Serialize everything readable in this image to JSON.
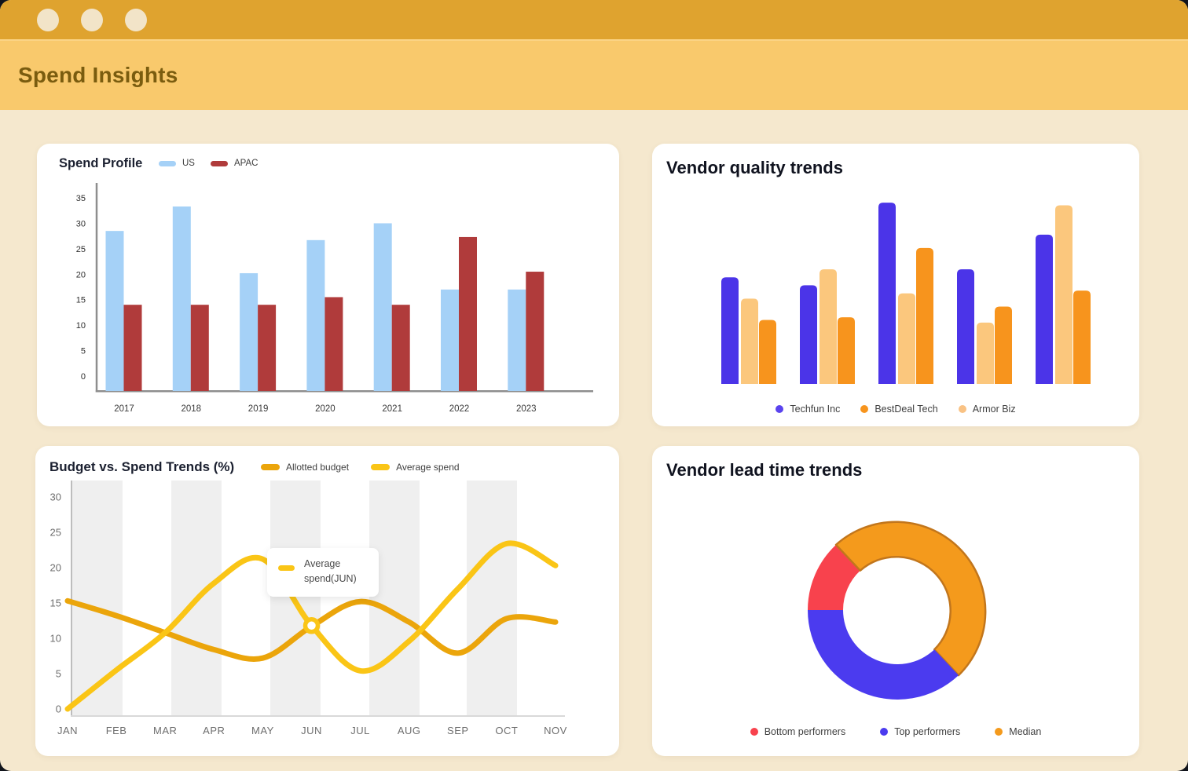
{
  "window": {
    "title": "Spend Insights"
  },
  "colors": {
    "titlebar": "#DFA32F",
    "header_band": "#F9C96C",
    "header_title": "#7A5C0F",
    "background": "#F5E8CE",
    "card": "#FFFFFF"
  },
  "chart_data": [
    {
      "type": "bar",
      "title": "Spend Profile",
      "categories": [
        "2017",
        "2018",
        "2019",
        "2020",
        "2021",
        "2022",
        "2023"
      ],
      "series": [
        {
          "name": "US",
          "color": "#A5D1F7",
          "values": [
            28.5,
            33.3,
            20.2,
            26.7,
            30,
            17,
            17
          ]
        },
        {
          "name": "APAC",
          "color": "#B03B3B",
          "values": [
            14,
            14,
            14,
            15.5,
            14,
            27.3,
            20.5
          ]
        }
      ],
      "xlabel": "",
      "ylabel": "",
      "ylim": [
        0,
        35
      ],
      "y_ticks": [
        0,
        5,
        10,
        15,
        20,
        25,
        30,
        35
      ],
      "grid": false,
      "legend_position": "top",
      "legend_items": [
        {
          "label": "US",
          "color": "#A5D1F7"
        },
        {
          "label": "APAC",
          "color": "#B03B3B"
        }
      ]
    },
    {
      "type": "bar",
      "title": "Vendor quality trends",
      "categories": [
        "",
        "",
        "",
        "",
        ""
      ],
      "series": [
        {
          "name": "Techfun Inc",
          "color": "#4B34E8",
          "values": [
            20,
            18.5,
            34,
            21.5,
            28
          ]
        },
        {
          "name": "Armor Biz",
          "color": "#FBC77D",
          "values": [
            16,
            21.5,
            17,
            11.5,
            33.5
          ]
        },
        {
          "name": "BestDeal Tech",
          "color": "#F7941D",
          "values": [
            12,
            12.5,
            25.5,
            14.5,
            17.5
          ]
        }
      ],
      "ylim": [
        0,
        36
      ],
      "axes_visible": false,
      "grid": false,
      "legend_position": "bottom",
      "legend_items": [
        {
          "label": "Techfun Inc",
          "color": "#5A43EE"
        },
        {
          "label": "BestDeal Tech",
          "color": "#F7941D"
        },
        {
          "label": "Armor Biz",
          "color": "#F9C284"
        }
      ]
    },
    {
      "type": "line",
      "title": "Budget vs. Spend Trends (%)",
      "x": [
        "JAN",
        "FEB",
        "MAR",
        "APR",
        "MAY",
        "JUN",
        "JUL",
        "AUG",
        "SEP",
        "OCT",
        "NOV"
      ],
      "series": [
        {
          "name": "Allotted budget",
          "color": "#EBA50B",
          "values": [
            15.3,
            13.2,
            10.8,
            8.4,
            7.2,
            11.7,
            15.2,
            12.3,
            7.9,
            12.8,
            12.3
          ]
        },
        {
          "name": "Average spend",
          "color": "#FAC516",
          "values": [
            0,
            5.5,
            10.8,
            17.8,
            21.2,
            11.8,
            5.4,
            9.6,
            17,
            23.4,
            20.3
          ]
        }
      ],
      "ylim": [
        0,
        31
      ],
      "y_ticks": [
        0,
        5,
        10,
        15,
        20,
        25,
        30
      ],
      "plot_bands": "alternating vertical gray stripes",
      "band_color": "#EFEFEF",
      "legend_position": "top",
      "legend_items": [
        {
          "label": "Allotted budget",
          "color": "#EBA50B"
        },
        {
          "label": "Average spend",
          "color": "#FAC516"
        }
      ],
      "highlight": {
        "series": "Average spend",
        "x": "JUN",
        "value": 11.8,
        "tooltip_lines": [
          "Average",
          "spend(JUN)"
        ]
      }
    },
    {
      "type": "pie",
      "title": "Vendor lead time trends",
      "donut": true,
      "start_angle": "left",
      "direction": "clockwise",
      "slices": [
        {
          "label": "Bottom performers",
          "color": "#F8424D",
          "percent": 13
        },
        {
          "label": "Median",
          "color": "#F49A1C",
          "percent": 50,
          "stroke": "#C2761C"
        },
        {
          "label": "Top performers",
          "color": "#4B3BEF",
          "percent": 37
        }
      ],
      "legend_position": "bottom",
      "legend_items": [
        {
          "label": "Bottom performers",
          "color": "#F8424D"
        },
        {
          "label": "Top performers",
          "color": "#4B3BEF"
        },
        {
          "label": "Median",
          "color": "#F49A1C"
        }
      ]
    }
  ]
}
